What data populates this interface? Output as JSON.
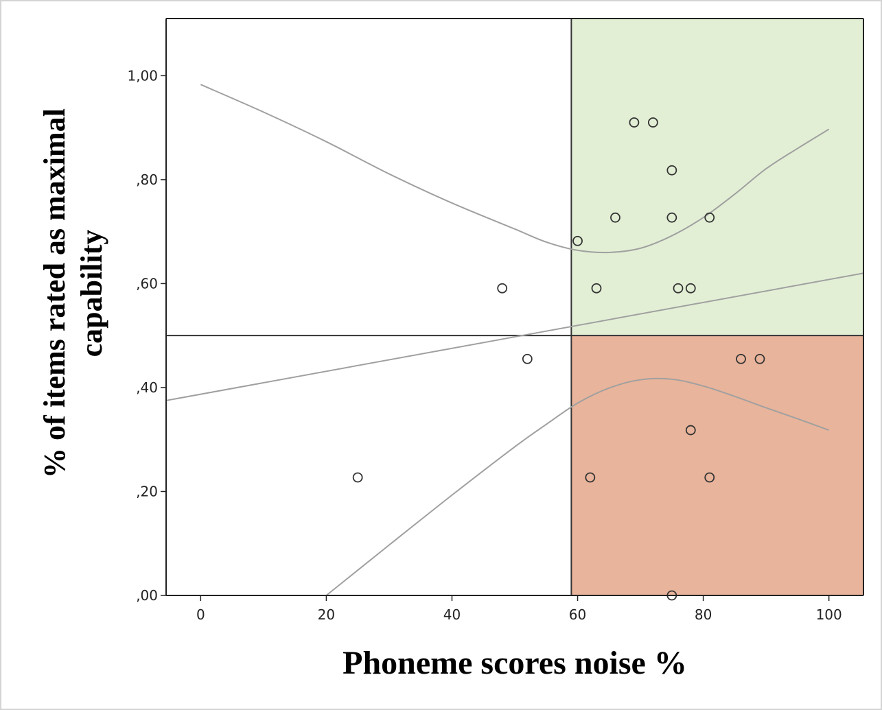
{
  "chart_data": {
    "type": "scatter",
    "title": "",
    "xlabel": "Phoneme scores noise %",
    "ylabel_lines": [
      "% of items rated as maximal",
      "capability"
    ],
    "xlim": [
      -5.5,
      105.5
    ],
    "ylim": [
      0.0,
      1.11
    ],
    "x_ticks": [
      0,
      20,
      40,
      60,
      80,
      100
    ],
    "x_tick_labels": [
      "0",
      "20",
      "40",
      "60",
      "80",
      "100"
    ],
    "y_ticks": [
      0.0,
      0.2,
      0.4,
      0.6,
      0.8,
      1.0
    ],
    "y_tick_labels": [
      ",00",
      ",20",
      ",40",
      ",60",
      ",80",
      "1,00"
    ],
    "grid": false,
    "legend": "none",
    "reference_lines": {
      "x": 59,
      "y": 0.5
    },
    "quadrants": [
      {
        "region": "upper-right",
        "x_range": [
          59,
          105.5
        ],
        "y_range": [
          0.5,
          1.11
        ],
        "color": "#e2efd5"
      },
      {
        "region": "lower-right",
        "x_range": [
          59,
          105.5
        ],
        "y_range": [
          0.0,
          0.5
        ],
        "color": "#e8b49b"
      }
    ],
    "points": [
      {
        "x": 69,
        "y": 0.91
      },
      {
        "x": 72,
        "y": 0.91
      },
      {
        "x": 75,
        "y": 0.818
      },
      {
        "x": 66,
        "y": 0.727
      },
      {
        "x": 75,
        "y": 0.727
      },
      {
        "x": 81,
        "y": 0.727
      },
      {
        "x": 60,
        "y": 0.682
      },
      {
        "x": 48,
        "y": 0.591
      },
      {
        "x": 63,
        "y": 0.591
      },
      {
        "x": 76,
        "y": 0.591
      },
      {
        "x": 78,
        "y": 0.591
      },
      {
        "x": 52,
        "y": 0.455
      },
      {
        "x": 86,
        "y": 0.455
      },
      {
        "x": 89,
        "y": 0.455
      },
      {
        "x": 78,
        "y": 0.318
      },
      {
        "x": 25,
        "y": 0.227
      },
      {
        "x": 62,
        "y": 0.227
      },
      {
        "x": 81,
        "y": 0.227
      },
      {
        "x": 75,
        "y": 0.0
      }
    ],
    "fit_line": {
      "x": [
        -5.5,
        105.5
      ],
      "y": [
        0.375,
        0.62
      ]
    },
    "ci_upper": {
      "x": [
        0,
        10,
        20,
        30,
        40,
        50,
        55,
        60,
        65,
        70,
        75,
        80,
        85,
        90,
        95,
        100
      ],
      "y": [
        0.983,
        0.93,
        0.873,
        0.811,
        0.755,
        0.705,
        0.68,
        0.664,
        0.66,
        0.668,
        0.692,
        0.727,
        0.772,
        0.821,
        0.86,
        0.897
      ]
    },
    "ci_lower": {
      "x": [
        20,
        30,
        40,
        50,
        55,
        60,
        65,
        70,
        75,
        80,
        85,
        90,
        95,
        100
      ],
      "y": [
        0.0,
        0.097,
        0.193,
        0.286,
        0.329,
        0.37,
        0.399,
        0.415,
        0.416,
        0.403,
        0.383,
        0.361,
        0.34,
        0.318
      ]
    },
    "colors": {
      "axis": "#222222",
      "reference_line": "#333333",
      "fit_line": "#a0a0a0",
      "marker": "#333333",
      "upper_right": "#e2efd5",
      "lower_right": "#e8b49b"
    }
  }
}
